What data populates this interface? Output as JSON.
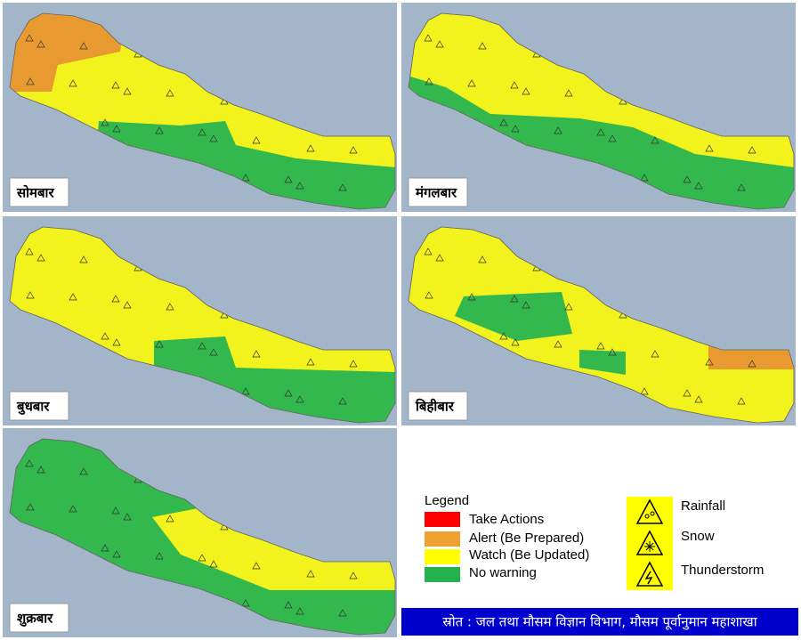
{
  "panels": [
    {
      "label": "सोमबार"
    },
    {
      "label": "मंगलबार"
    },
    {
      "label": "बुधबार"
    },
    {
      "label": "बिहीबार"
    },
    {
      "label": "शुक्रबार"
    }
  ],
  "legend": {
    "title": "Legend",
    "items": [
      {
        "label": "Take Actions"
      },
      {
        "label": "Alert (Be Prepared)"
      },
      {
        "label": "Watch (Be Updated)"
      },
      {
        "label": "No warning"
      }
    ],
    "hazards": [
      {
        "label": "Rainfall"
      },
      {
        "label": "Snow"
      },
      {
        "label": "Thunderstorm"
      }
    ]
  },
  "source": "स्रोत : जल तथा मौसम विज्ञान विभाग, मौसम पूर्वानुमान महाशाखा"
}
